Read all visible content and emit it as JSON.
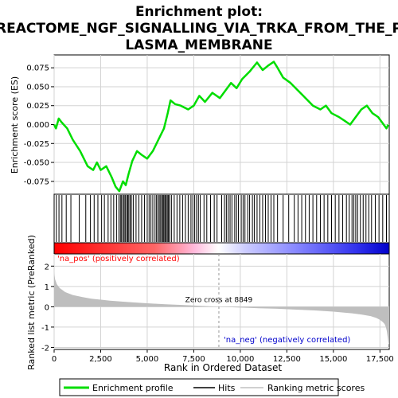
{
  "chart_data": {
    "type": "line",
    "title": "Enrichment plot:\nREACTOME_NGF_SIGNALLING_VIA_TRKA_FROM_THE_PLASMA_MEMBRANE",
    "title_lines": [
      "Enrichment plot:",
      "REACTOME_NGF_SIGNALLING_VIA_TRKA_FROM_THE_P",
      "LASMA_MEMBRANE"
    ],
    "n_genes": 18000,
    "es_panel": {
      "ylabel": "Enrichment score (ES)",
      "ylim": [
        -0.092,
        0.092
      ],
      "yticks": [
        -0.075,
        -0.05,
        -0.025,
        0.0,
        0.025,
        0.05,
        0.075
      ],
      "ytick_labels": [
        "-0.075",
        "-0.050",
        "-0.025",
        "0.000",
        "0.025",
        "0.050",
        "0.075"
      ],
      "grid": true,
      "series": [
        {
          "name": "Enrichment profile",
          "color": "#00dd00",
          "x": [
            0,
            100,
            250,
            400,
            700,
            1000,
            1400,
            1800,
            2100,
            2300,
            2500,
            2800,
            3100,
            3300,
            3500,
            3700,
            3850,
            4000,
            4200,
            4450,
            4700,
            5000,
            5300,
            5600,
            5900,
            6100,
            6250,
            6500,
            6800,
            7200,
            7500,
            7800,
            8100,
            8500,
            8900,
            9200,
            9500,
            9800,
            10100,
            10500,
            10900,
            11200,
            11500,
            11800,
            12000,
            12300,
            12700,
            13100,
            13500,
            13900,
            14300,
            14600,
            14900,
            15300,
            15600,
            15900,
            16200,
            16500,
            16800,
            17100,
            17400,
            17700,
            17850,
            17950
          ],
          "y": [
            0.0,
            -0.005,
            0.008,
            0.003,
            -0.005,
            -0.02,
            -0.035,
            -0.055,
            -0.06,
            -0.05,
            -0.06,
            -0.055,
            -0.07,
            -0.082,
            -0.088,
            -0.075,
            -0.08,
            -0.065,
            -0.048,
            -0.035,
            -0.04,
            -0.045,
            -0.035,
            -0.02,
            -0.005,
            0.015,
            0.032,
            0.027,
            0.025,
            0.02,
            0.025,
            0.038,
            0.03,
            0.042,
            0.035,
            0.045,
            0.055,
            0.048,
            0.06,
            0.07,
            0.082,
            0.072,
            0.078,
            0.083,
            0.075,
            0.062,
            0.055,
            0.045,
            0.035,
            0.025,
            0.02,
            0.025,
            0.015,
            0.01,
            0.005,
            0.0,
            0.01,
            0.02,
            0.025,
            0.015,
            0.01,
            0.0,
            -0.005,
            0.0
          ]
        }
      ]
    },
    "hits": {
      "name": "Hits",
      "positions": [
        120,
        260,
        420,
        650,
        900,
        1350,
        1700,
        1950,
        2150,
        2350,
        2550,
        2700,
        2900,
        3050,
        3200,
        3350,
        3480,
        3560,
        3620,
        3700,
        3760,
        3820,
        3900,
        3950,
        4010,
        4080,
        4150,
        4250,
        4400,
        4550,
        4700,
        4850,
        5000,
        5100,
        5200,
        5300,
        5420,
        5500,
        5580,
        5650,
        5720,
        5790,
        5850,
        5900,
        5960,
        6020,
        6080,
        6140,
        6200,
        6300,
        6450,
        6600,
        6750,
        6900,
        7050,
        7200,
        7350,
        7450,
        7550,
        7650,
        7750,
        7850,
        8050,
        8200,
        8400,
        8600,
        8750,
        9000,
        9150,
        9250,
        9350,
        9450,
        9550,
        9700,
        9800,
        9900,
        10050,
        10150,
        10250,
        10400,
        10500,
        10650,
        10750,
        10900,
        11050,
        11200,
        11350,
        11500,
        11650,
        11800,
        12000,
        12300,
        12600,
        12900,
        13100,
        13300,
        13500,
        13700,
        13900,
        14100,
        14300,
        14500,
        14700,
        14900,
        15100,
        15300,
        15500,
        15700,
        15850,
        16000,
        16100,
        16200,
        16300,
        16450,
        16600,
        16750,
        16900,
        17050,
        17250,
        17450,
        17650,
        17850
      ]
    },
    "rank_panel": {
      "ylabel": "Ranked list metric (PreRanked)",
      "xlabel": "Rank in Ordered Dataset",
      "ylim": [
        -2.1,
        2.6
      ],
      "yticks": [
        -2,
        -1,
        0,
        1,
        2
      ],
      "ytick_labels": [
        "-2",
        "-1",
        "0",
        "1",
        "2"
      ],
      "xlim": [
        0,
        18000
      ],
      "xticks": [
        0,
        2500,
        5000,
        7500,
        10000,
        12500,
        15000,
        17500
      ],
      "xtick_labels": [
        "0",
        "2,500",
        "5,000",
        "7,500",
        "10,000",
        "12,500",
        "15,000",
        "17,500"
      ],
      "zero_cross": 8849,
      "zero_cross_label": "Zero cross at 8849",
      "metric_x": [
        0,
        50,
        150,
        300,
        600,
        1000,
        1500,
        2000,
        3000,
        4000,
        5000,
        6000,
        7000,
        8000,
        8849,
        10000,
        11000,
        12000,
        13000,
        14000,
        15000,
        16000,
        16500,
        17000,
        17300,
        17500,
        17650,
        17750,
        17820,
        17870,
        17920,
        17960,
        18000
      ],
      "metric_y": [
        1.7,
        1.35,
        1.1,
        0.92,
        0.72,
        0.58,
        0.48,
        0.4,
        0.3,
        0.23,
        0.17,
        0.12,
        0.08,
        0.04,
        0.0,
        -0.04,
        -0.07,
        -0.1,
        -0.14,
        -0.18,
        -0.24,
        -0.32,
        -0.38,
        -0.46,
        -0.55,
        -0.64,
        -0.75,
        -0.85,
        -1.0,
        -1.2,
        -1.5,
        -1.8,
        -1.85
      ],
      "annotations": {
        "pos": "'na_pos' (positively correlated)",
        "neg": "'na_neg' (negatively correlated)"
      }
    },
    "legend": {
      "placement": "bottom",
      "entries": [
        {
          "label": "Enrichment profile",
          "color": "#00dd00",
          "kind": "line"
        },
        {
          "label": "Hits",
          "color": "#000000",
          "kind": "line"
        },
        {
          "label": "Ranking metric scores",
          "color": "#c0c0c0",
          "kind": "line"
        }
      ]
    }
  },
  "colors": {
    "profile": "#00dd00",
    "hits": "#000000",
    "metric_fill": "#bebebe",
    "grid": "#d3d3d3",
    "zero_cross": "#999999",
    "pos_text": "#ff0000",
    "neg_text": "#0000cc",
    "heat_pos": "#ff0000",
    "heat_mid": "#ffffff",
    "heat_neg": "#0000ff"
  }
}
